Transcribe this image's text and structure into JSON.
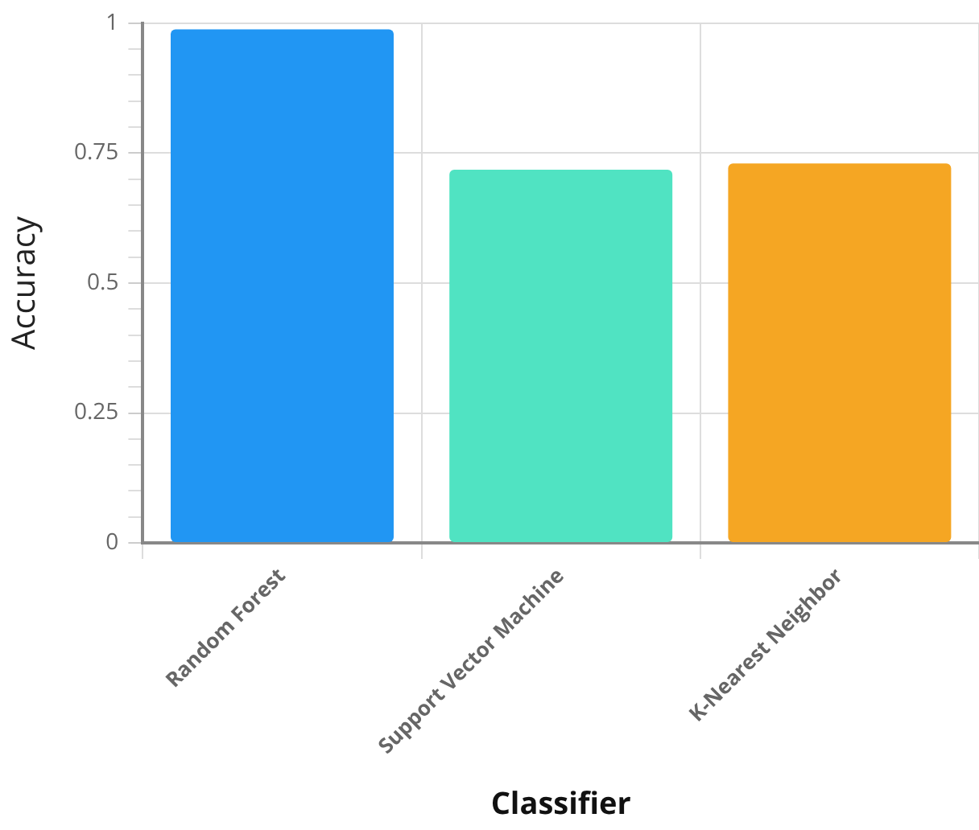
{
  "chart_data": {
    "type": "bar",
    "xlabel": "Classifier",
    "ylabel": "Accuracy",
    "categories": [
      "Random Forest",
      "Support Vector Machine",
      "K-Nearest Neighbor"
    ],
    "values": [
      0.988,
      0.718,
      0.73
    ],
    "colors": [
      "#2196f3",
      "#50e3c2",
      "#f5a623"
    ],
    "ylim": [
      0,
      1
    ],
    "yticks": [
      0,
      {
        "value": 0.05,
        "label": null
      },
      {
        "value": 0.1,
        "label": null
      },
      {
        "value": 0.15,
        "label": null
      },
      {
        "value": 0.2,
        "label": null
      },
      0.25,
      {
        "value": 0.3,
        "label": null
      },
      {
        "value": 0.35,
        "label": null
      },
      {
        "value": 0.4,
        "label": null
      },
      {
        "value": 0.45,
        "label": null
      },
      0.5,
      {
        "value": 0.55,
        "label": null
      },
      {
        "value": 0.6,
        "label": null
      },
      {
        "value": 0.65,
        "label": null
      },
      {
        "value": 0.7,
        "label": null
      },
      0.75,
      {
        "value": 0.8,
        "label": null
      },
      {
        "value": 0.85,
        "label": null
      },
      {
        "value": 0.9,
        "label": null
      },
      {
        "value": 0.95,
        "label": null
      },
      1
    ],
    "grid": true,
    "legend": false
  }
}
